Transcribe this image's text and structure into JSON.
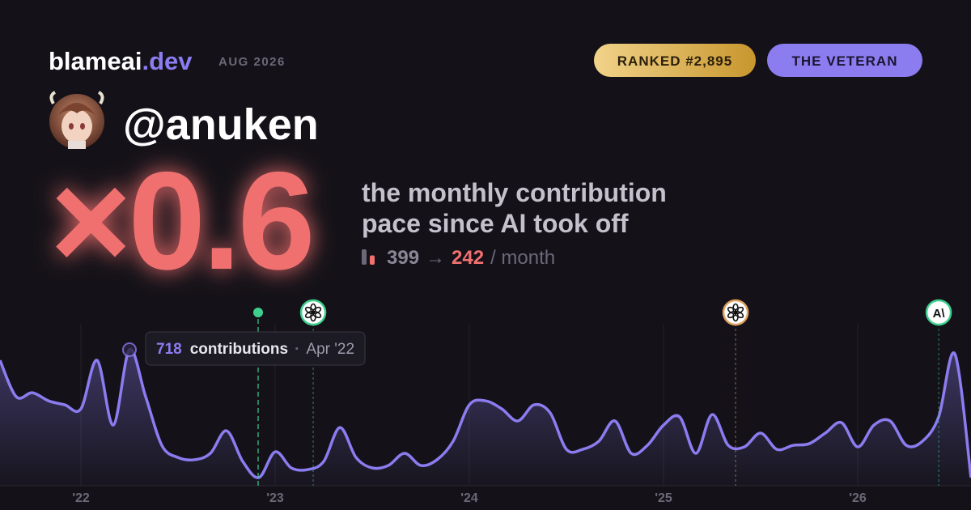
{
  "header": {
    "brand": "blameai",
    "domain": ".dev",
    "date": "AUG 2026",
    "rank": "RANKED #2,895",
    "title": "THE VETERAN",
    "user": "@anuken"
  },
  "stats": {
    "multiplier": "×0.6",
    "line1": "the monthly contribution",
    "line2": "pace since AI took off",
    "before": 399,
    "arrow": "→",
    "after": 242,
    "unit": "/ month",
    "before_color": "#6b6878",
    "after_color": "#f07070"
  },
  "chart_data": {
    "type": "line",
    "x": [
      2021.5833,
      2021.6667,
      2021.75,
      2021.8333,
      2021.9167,
      2022,
      2022.0833,
      2022.1667,
      2022.25,
      2022.3333,
      2022.4167,
      2022.5,
      2022.5833,
      2022.6667,
      2022.75,
      2022.8333,
      2022.9167,
      2023,
      2023.0833,
      2023.1667,
      2023.25,
      2023.3333,
      2023.4167,
      2023.5,
      2023.5833,
      2023.6667,
      2023.75,
      2023.8333,
      2023.9167,
      2024,
      2024.0833,
      2024.1667,
      2024.25,
      2024.3333,
      2024.4167,
      2024.5,
      2024.5833,
      2024.6667,
      2024.75,
      2024.8333,
      2024.9167,
      2025,
      2025.0833,
      2025.1667,
      2025.25,
      2025.3333,
      2025.4167,
      2025.5,
      2025.5833,
      2025.6667,
      2025.75,
      2025.8333,
      2025.9167,
      2026,
      2026.0833,
      2026.1667,
      2026.25,
      2026.3333,
      2026.4167,
      2026.5,
      2026.5833
    ],
    "series": [
      {
        "name": "contributions",
        "color": "#8b7cf0",
        "values": [
          662,
          470,
          491,
          448,
          427,
          406,
          662,
          320,
          718,
          470,
          213,
          149,
          137,
          171,
          290,
          128,
          43,
          179,
          94,
          85,
          128,
          307,
          149,
          94,
          107,
          171,
          107,
          137,
          235,
          427,
          448,
          406,
          342,
          427,
          384,
          192,
          192,
          235,
          342,
          171,
          213,
          320,
          363,
          171,
          376,
          213,
          205,
          278,
          192,
          213,
          222,
          278,
          333,
          205,
          320,
          342,
          213,
          235,
          363,
          696,
          43
        ]
      }
    ],
    "xlim": [
      2021.5833,
      2026.5833
    ],
    "xticks": [
      {
        "value": 2022,
        "label": "'22"
      },
      {
        "value": 2023,
        "label": "'23"
      },
      {
        "value": 2024,
        "label": "'24"
      },
      {
        "value": 2025,
        "label": "'25"
      },
      {
        "value": 2026,
        "label": "'26"
      }
    ],
    "grid": true,
    "tooltip": {
      "index": 8,
      "label": "contributions",
      "separator": "·",
      "date": "Apr '22"
    },
    "events": [
      {
        "x": 2022.9125,
        "color": "#3ecf8e",
        "style": "dot"
      },
      {
        "x": 2023.196,
        "color": "#3ecf8e",
        "style": "icon"
      },
      {
        "x": 2025.371,
        "color": "#e0a060",
        "style": "icon"
      },
      {
        "x": 2026.417,
        "color": "#3ecf8e",
        "style": "icon",
        "label": "A\\"
      }
    ]
  }
}
